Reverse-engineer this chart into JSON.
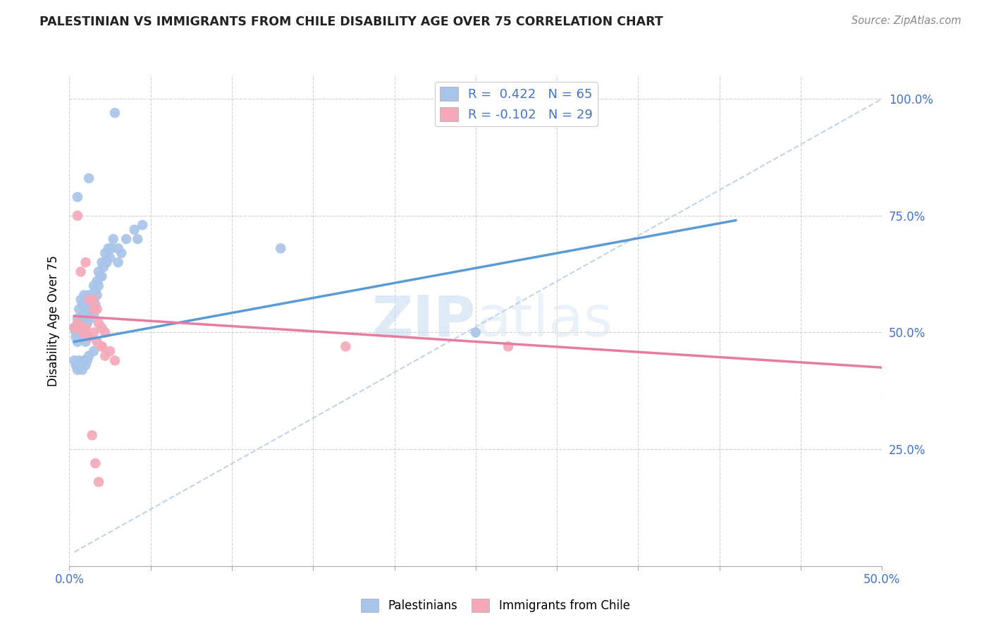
{
  "title": "PALESTINIAN VS IMMIGRANTS FROM CHILE DISABILITY AGE OVER 75 CORRELATION CHART",
  "source": "Source: ZipAtlas.com",
  "ylabel": "Disability Age Over 75",
  "xlim": [
    0.0,
    0.5
  ],
  "ylim": [
    0.0,
    1.05
  ],
  "legend1_label": "R =  0.422   N = 65",
  "legend2_label": "R = -0.102   N = 29",
  "blue_color": "#a8c4e8",
  "pink_color": "#f4a8b8",
  "blue_line_color": "#5b9bd5",
  "pink_line_color": "#e87ca0",
  "dashed_color": "#c0d4e8",
  "watermark_color": "#dce9f5",
  "title_color": "#222222",
  "source_color": "#888888",
  "tick_color": "#4472c4",
  "blue_scatter_x": [
    0.028,
    0.012,
    0.005,
    0.003,
    0.004,
    0.004,
    0.005,
    0.005,
    0.006,
    0.006,
    0.007,
    0.007,
    0.008,
    0.009,
    0.009,
    0.01,
    0.01,
    0.01,
    0.01,
    0.011,
    0.011,
    0.012,
    0.012,
    0.013,
    0.013,
    0.014,
    0.015,
    0.015,
    0.015,
    0.016,
    0.016,
    0.017,
    0.017,
    0.018,
    0.018,
    0.019,
    0.02,
    0.02,
    0.021,
    0.022,
    0.023,
    0.024,
    0.025,
    0.026,
    0.027,
    0.03,
    0.03,
    0.032,
    0.035,
    0.04,
    0.042,
    0.045,
    0.13,
    0.25,
    0.003,
    0.004,
    0.005,
    0.006,
    0.007,
    0.008,
    0.009,
    0.01,
    0.011,
    0.012,
    0.015
  ],
  "blue_scatter_y": [
    0.97,
    0.83,
    0.79,
    0.51,
    0.5,
    0.49,
    0.53,
    0.48,
    0.55,
    0.52,
    0.57,
    0.53,
    0.56,
    0.58,
    0.54,
    0.52,
    0.5,
    0.49,
    0.48,
    0.55,
    0.52,
    0.58,
    0.54,
    0.56,
    0.53,
    0.58,
    0.6,
    0.57,
    0.54,
    0.59,
    0.56,
    0.61,
    0.58,
    0.63,
    0.6,
    0.62,
    0.65,
    0.62,
    0.64,
    0.67,
    0.65,
    0.68,
    0.66,
    0.68,
    0.7,
    0.68,
    0.65,
    0.67,
    0.7,
    0.72,
    0.7,
    0.73,
    0.68,
    0.5,
    0.44,
    0.43,
    0.42,
    0.44,
    0.43,
    0.42,
    0.44,
    0.43,
    0.44,
    0.45,
    0.46
  ],
  "pink_scatter_x": [
    0.005,
    0.007,
    0.01,
    0.012,
    0.015,
    0.015,
    0.017,
    0.018,
    0.02,
    0.022,
    0.003,
    0.005,
    0.006,
    0.008,
    0.009,
    0.01,
    0.012,
    0.015,
    0.017,
    0.02,
    0.17,
    0.27,
    0.014,
    0.016,
    0.018,
    0.02,
    0.022,
    0.025,
    0.028
  ],
  "pink_scatter_y": [
    0.75,
    0.63,
    0.65,
    0.57,
    0.55,
    0.57,
    0.55,
    0.52,
    0.51,
    0.5,
    0.51,
    0.52,
    0.51,
    0.5,
    0.51,
    0.51,
    0.49,
    0.5,
    0.48,
    0.47,
    0.47,
    0.47,
    0.28,
    0.22,
    0.18,
    0.47,
    0.45,
    0.46,
    0.44
  ],
  "blue_line_x": [
    0.003,
    0.41
  ],
  "blue_line_y": [
    0.48,
    0.74
  ],
  "pink_line_x": [
    0.003,
    0.5
  ],
  "pink_line_y": [
    0.535,
    0.425
  ],
  "dash_line_x": [
    0.003,
    0.5
  ],
  "dash_line_y": [
    0.03,
    1.0
  ],
  "ytick_positions": [
    0.25,
    0.5,
    0.75,
    1.0
  ],
  "ytick_labels": [
    "25.0%",
    "50.0%",
    "75.0%",
    "100.0%"
  ],
  "xtick_positions": [
    0.0,
    0.05,
    0.1,
    0.15,
    0.2,
    0.25,
    0.3,
    0.35,
    0.4,
    0.45,
    0.5
  ],
  "xtick_labels": [
    "0.0%",
    "",
    "",
    "",
    "",
    "",
    "",
    "",
    "",
    "",
    "50.0%"
  ]
}
